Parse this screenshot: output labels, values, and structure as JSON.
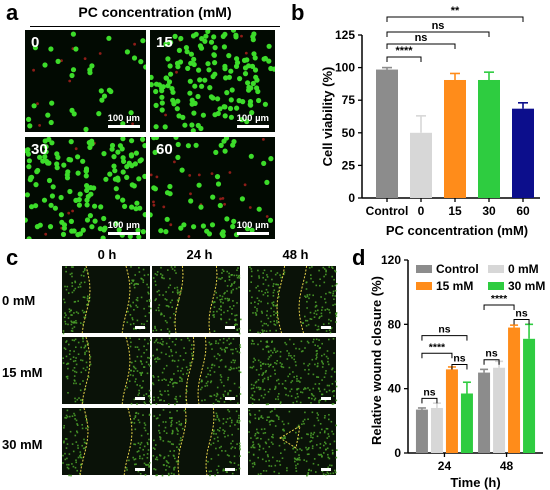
{
  "panels": {
    "a": "a",
    "b": "b",
    "c": "c",
    "d": "d"
  },
  "panel_a": {
    "header": "PC concentration (mM)",
    "images": [
      {
        "label": "0",
        "scale": "100 µm",
        "green": 34,
        "red": 10
      },
      {
        "label": "15",
        "scale": "100 µm",
        "green": 150,
        "red": 6
      },
      {
        "label": "30",
        "scale": "100 µm",
        "green": 145,
        "red": 8
      },
      {
        "label": "60",
        "scale": "100 µm",
        "green": 55,
        "red": 22
      }
    ]
  },
  "panel_c": {
    "col_headers": [
      "0 h",
      "24 h",
      "48 h"
    ],
    "row_labels": [
      "0 mM",
      "15 mM",
      "30 mM"
    ]
  },
  "chart_data": [
    {
      "type": "bar",
      "panel": "b",
      "categories": [
        "Control",
        "0",
        "15",
        "30",
        "60"
      ],
      "values": [
        98.5,
        50,
        90.5,
        90.5,
        68.5
      ],
      "errors": [
        1.5,
        13,
        5,
        6,
        4.5
      ],
      "colors": [
        "#8c8c8c",
        "#d7d7d7",
        "#ff8c1a",
        "#2ecc40",
        "#0c0e8c"
      ],
      "xlabel": "PC concentration (mM)",
      "ylabel": "Cell viability (%)",
      "ylim": [
        0,
        125
      ],
      "yticks": [
        0,
        25,
        50,
        75,
        100,
        125
      ],
      "significance": [
        {
          "from": 0,
          "to": 1,
          "label": "****"
        },
        {
          "from": 0,
          "to": 2,
          "label": "ns"
        },
        {
          "from": 0,
          "to": 3,
          "label": "ns"
        },
        {
          "from": 0,
          "to": 4,
          "label": "**"
        }
      ]
    },
    {
      "type": "bar",
      "panel": "d",
      "categories": [
        "24",
        "48"
      ],
      "series": [
        {
          "name": "Control",
          "color": "#8c8c8c",
          "values": [
            27,
            50
          ],
          "errors": [
            1,
            2
          ]
        },
        {
          "name": "0 mM",
          "color": "#d7d7d7",
          "values": [
            28,
            53
          ],
          "errors": [
            3,
            4
          ]
        },
        {
          "name": "15 mM",
          "color": "#ff8c1a",
          "values": [
            52,
            78
          ],
          "errors": [
            1.5,
            1.5
          ]
        },
        {
          "name": "30 mM",
          "color": "#2ecc40",
          "values": [
            37,
            71
          ],
          "errors": [
            7,
            9
          ]
        }
      ],
      "xlabel": "Time (h)",
      "ylabel": "Relative wound closure (%)",
      "ylim": [
        0,
        120
      ],
      "yticks": [
        0,
        40,
        80,
        120
      ],
      "significance": [
        {
          "group": 0,
          "from": 0,
          "to": 1,
          "label": "ns"
        },
        {
          "group": 0,
          "from": 2,
          "to": 3,
          "label": "ns"
        },
        {
          "group": 0,
          "from": 0,
          "to": 2,
          "label": "****"
        },
        {
          "group": 0,
          "from": 0,
          "to": 3,
          "label": "ns"
        },
        {
          "group": 1,
          "from": 0,
          "to": 1,
          "label": "ns"
        },
        {
          "group": 1,
          "from": 2,
          "to": 3,
          "label": "ns"
        },
        {
          "group": 1,
          "from": 0,
          "to": 2,
          "label": "****"
        }
      ]
    }
  ]
}
